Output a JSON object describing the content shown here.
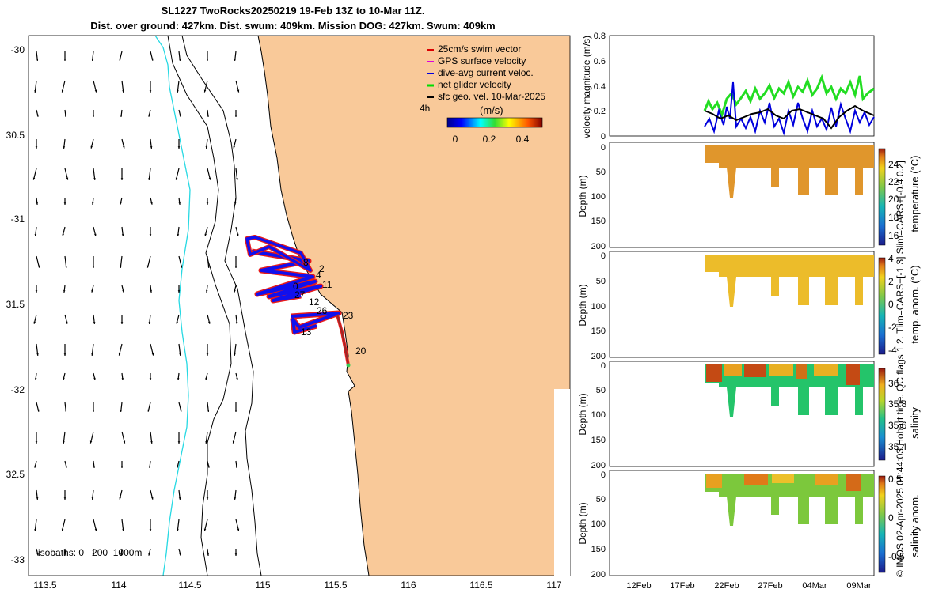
{
  "title": {
    "line1": "SL1227 TwoRocks20250219 19-Feb 13Z to 10-Mar 11Z.",
    "line2": "Dist. over ground: 427km. Dist. swum: 409km. Mission DOG: 427km. Swum: 409km"
  },
  "map": {
    "lat_ticks": [
      "-30",
      "30.5",
      "-31",
      "31.5",
      "-32",
      "32.5",
      "-33"
    ],
    "lon_ticks": [
      "113.5",
      "114",
      "114.5",
      "115",
      "115.5",
      "116",
      "116.5",
      "117"
    ],
    "isobaths": "isobaths: 0   200  1000m",
    "time_step": "4h",
    "colorbar_title": "(m/s)",
    "colorbar_ticks": [
      "0",
      "0.2",
      "0.4"
    ],
    "day_labels": [
      "8",
      "2",
      "4",
      "11",
      "0",
      "27",
      "12",
      "26",
      "23",
      "13",
      "20"
    ],
    "legend": [
      {
        "label": "25cm/s swim vector",
        "color": "#dd0000"
      },
      {
        "label": "GPS surface velocity",
        "color": "#dd00dd"
      },
      {
        "label": "dive-avg current veloc.",
        "color": "#0000dd"
      },
      {
        "label": "net glider velocity",
        "color": "#00dd00"
      },
      {
        "label": "sfc geo. vel. 10-Mar-2025",
        "color": "#000000"
      }
    ],
    "colors": {
      "land": "#f9c999",
      "isobath": "#27d9e3",
      "track": "#1010ee",
      "swim": "#e81a1a"
    }
  },
  "panels": {
    "velocity": {
      "ylabel": "velocity magnitude (m/s)",
      "yticks": [
        "0.8",
        "0.6",
        "0.4",
        "0.2",
        "0"
      ]
    },
    "depth_ylabel": "Depth (m)",
    "depth_ticks": [
      "0",
      "50",
      "100",
      "150",
      "200"
    ],
    "x_ticks": [
      "12Feb",
      "17Feb",
      "22Feb",
      "27Feb",
      "04Mar",
      "09Mar"
    ],
    "temperature": {
      "label": "temperature (°C)",
      "ticks": [
        "24",
        "22",
        "20",
        "18",
        "16"
      ]
    },
    "temp_anom": {
      "label": "temp. anom. (°C)",
      "ticks": [
        "4",
        "2",
        "0",
        "-2",
        "-4"
      ]
    },
    "salinity": {
      "label": "salinity",
      "ticks": [
        "36",
        "35.8",
        "35.6",
        "35.4"
      ]
    },
    "sal_anom": {
      "label": "salinity anom.",
      "ticks": [
        "0.5",
        "0",
        "-0.5"
      ]
    }
  },
  "credit": "© IMOS 02-Apr-2025 01:44:03 Hobart time. QC flags 1  2. Tlim=CARS+[-1 3] Slim=CARS+[-0.4 0.2]"
}
